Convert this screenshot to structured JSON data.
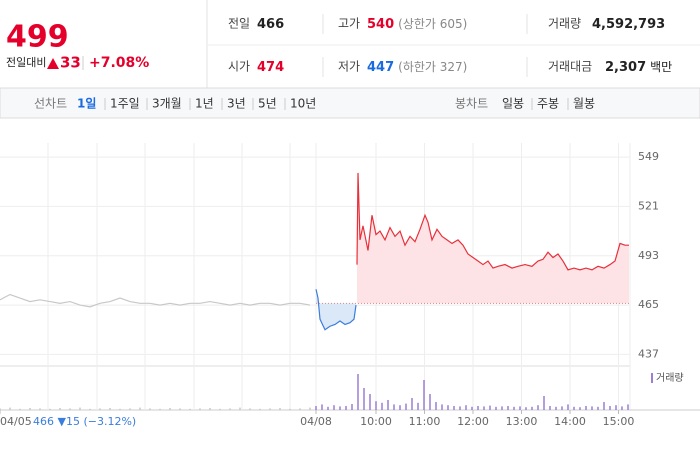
{
  "header": {
    "price": "499",
    "change_label": "전일대비",
    "change": "33",
    "change_rate": "+7.08%",
    "stats": [
      {
        "label": "전일",
        "value": "466"
      },
      {
        "label": "고가",
        "value": "540",
        "note": "(상한가 605)"
      },
      {
        "label": "거래량",
        "value": "4,592,793"
      },
      {
        "label": "시가",
        "value": "474"
      },
      {
        "label": "저가",
        "value": "447",
        "note": "(하한가 327)"
      },
      {
        "label": "거래대금",
        "value": "2,307",
        "unit": "백만"
      }
    ]
  },
  "tabs": {
    "line_chart": {
      "label": "선차트",
      "items": [
        "1일",
        "1주일",
        "3개월",
        "1년",
        "3년",
        "5년",
        "10년"
      ]
    },
    "candle_chart": {
      "label": "봉차트",
      "items": [
        "일봉",
        "주봉",
        "월봉"
      ]
    }
  },
  "chart_data": {
    "type": "line",
    "ylim": [
      431,
      557
    ],
    "yticks": [
      437,
      465,
      493,
      521,
      549
    ],
    "xlim": [
      0,
      630
    ],
    "xticks": [
      {
        "value": 0,
        "label": "04/05"
      },
      {
        "value": 316,
        "label": "04/08"
      },
      {
        "value": 376,
        "label": "10:00"
      },
      {
        "value": 424.5,
        "label": "11:00"
      },
      {
        "value": 473,
        "label": "12:00"
      },
      {
        "value": 521.5,
        "label": "13:00"
      },
      {
        "value": 570,
        "label": "14:00"
      },
      {
        "value": 618.5,
        "label": "15:00"
      }
    ],
    "xgrid": [
      48,
      97,
      145,
      194,
      242,
      290
    ],
    "prev_day_note": "466 ▼15 (−3.12%)",
    "baseline": 466,
    "series": [
      {
        "color": "#c8c8c8",
        "x": [
          0,
          10,
          20,
          30,
          40,
          50,
          60,
          70,
          80,
          90,
          100,
          110,
          120,
          130,
          140,
          150,
          160,
          170,
          180,
          190,
          200,
          210,
          220,
          230,
          240,
          250,
          260,
          270,
          280,
          290,
          300,
          310
        ],
        "values": [
          468,
          471,
          469,
          467,
          468,
          467,
          466,
          467,
          465,
          464,
          466,
          467,
          469,
          467,
          466,
          466,
          465,
          466,
          465,
          466,
          466,
          467,
          466,
          465,
          466,
          465,
          466,
          466,
          465,
          466,
          466,
          465
        ]
      },
      {
        "color": "#3b7ddd",
        "fill": "#dbe8f7",
        "x": [
          316,
          318,
          320,
          325,
          330,
          335,
          340,
          345,
          350,
          354,
          356
        ],
        "values": [
          474,
          469,
          457,
          451,
          453,
          454,
          456,
          454,
          455,
          457,
          465
        ]
      },
      {
        "color": "#e8303a",
        "fill": "#fde3e5",
        "x": [
          357,
          358,
          360,
          363,
          368,
          372,
          376,
          380,
          385,
          390,
          395,
          400,
          405,
          410,
          415,
          420,
          425,
          428,
          432,
          437,
          442,
          447,
          452,
          458,
          463,
          468,
          473,
          478,
          483,
          488,
          493,
          498,
          505,
          512,
          518,
          525,
          532,
          538,
          543,
          548,
          553,
          558,
          563,
          568,
          574,
          580,
          586,
          592,
          598,
          604,
          610,
          615,
          620,
          625,
          629
        ],
        "values": [
          488,
          540,
          502,
          510,
          496,
          516,
          505,
          507,
          502,
          509,
          504,
          507,
          499,
          504,
          501,
          508,
          516,
          512,
          502,
          508,
          504,
          502,
          500,
          502,
          499,
          494,
          492,
          490,
          488,
          490,
          486,
          487,
          488,
          486,
          487,
          488,
          487,
          490,
          491,
          495,
          492,
          494,
          490,
          485,
          486,
          485,
          486,
          485,
          487,
          486,
          488,
          490,
          500,
          499,
          499
        ]
      }
    ],
    "volume": {
      "label": "거래량",
      "ylim": [
        0,
        100
      ],
      "series": [
        {
          "color": "#c8c8c8",
          "x": [
            0,
            10,
            20,
            30,
            40,
            50,
            60,
            70,
            80,
            90,
            100,
            110,
            120,
            130,
            140,
            150,
            160,
            170,
            180,
            190,
            200,
            210,
            220,
            230,
            240,
            250,
            260,
            270,
            280,
            290,
            300,
            310
          ],
          "values": [
            4,
            6,
            3,
            5,
            4,
            3,
            5,
            4,
            6,
            3,
            4,
            5,
            3,
            4,
            6,
            4,
            3,
            5,
            4,
            3,
            4,
            5,
            3,
            4,
            6,
            4,
            3,
            4,
            5,
            3,
            4,
            6
          ]
        },
        {
          "color": "#9b7fd4",
          "x": [
            316,
            322,
            328,
            334,
            340,
            346,
            352,
            358,
            364,
            370,
            376,
            382,
            388,
            394,
            400,
            406,
            412,
            418,
            424,
            430,
            436,
            442,
            448,
            454,
            460,
            466,
            472,
            478,
            484,
            490,
            496,
            502,
            508,
            514,
            520,
            526,
            532,
            538,
            544,
            550,
            556,
            562,
            568,
            574,
            580,
            586,
            592,
            598,
            604,
            610,
            616,
            622,
            628
          ],
          "values": [
            10,
            14,
            8,
            12,
            9,
            10,
            15,
            90,
            55,
            40,
            22,
            18,
            25,
            14,
            12,
            16,
            30,
            18,
            75,
            40,
            20,
            14,
            12,
            10,
            9,
            12,
            8,
            10,
            9,
            11,
            8,
            9,
            10,
            8,
            9,
            7,
            8,
            12,
            35,
            10,
            8,
            9,
            14,
            8,
            7,
            10,
            9,
            8,
            20,
            10,
            12,
            9,
            14
          ]
        }
      ]
    }
  }
}
